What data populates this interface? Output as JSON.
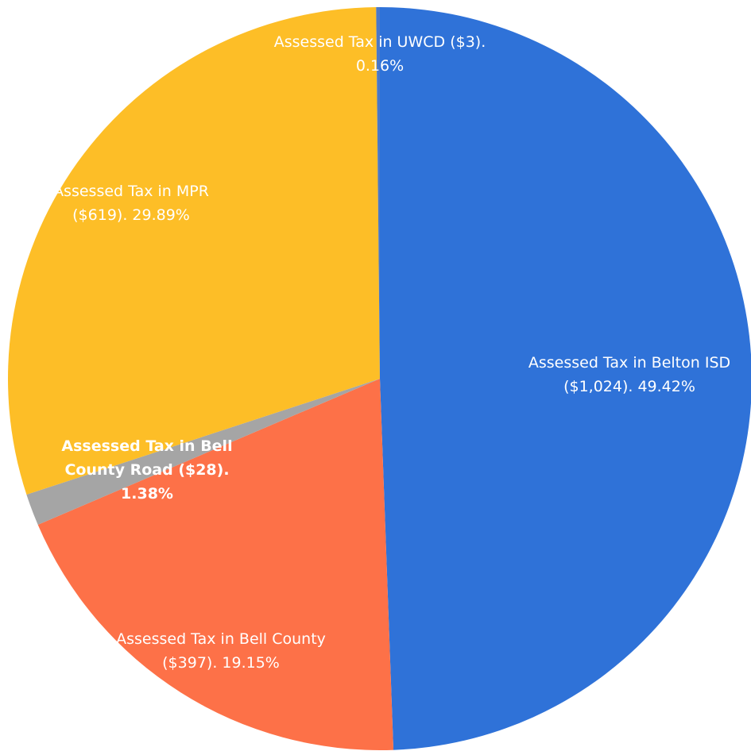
{
  "chart_data": {
    "type": "pie",
    "categories": [
      "Assessed Tax in Belton ISD",
      "Assessed Tax in Bell County",
      "Assessed Tax in Bell County Road",
      "Assessed Tax in MPR",
      "Assessed Tax in UWCD"
    ],
    "values": [
      49.42,
      19.15,
      1.38,
      29.89,
      0.16
    ],
    "value_labels": [
      "($1,024). 49.42%",
      "($397). 19.15%",
      "($28). 1.38%",
      "($619). 29.89%",
      "($3). 0.16%"
    ],
    "colors": [
      "#2f72d8",
      "#fd7148",
      "#a5a5a5",
      "#fdbe27",
      "#4a78c8"
    ]
  }
}
